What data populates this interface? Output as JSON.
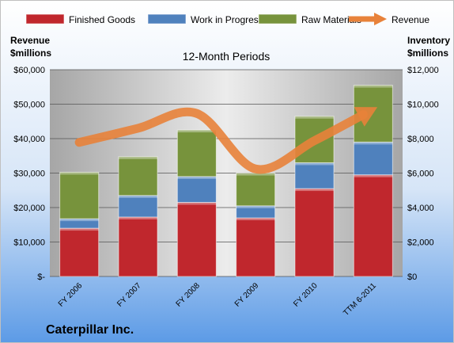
{
  "chart_data": {
    "type": "bar",
    "subtype": "stacked-bar-with-line",
    "title": "12-Month Periods",
    "company": "Caterpillar Inc.",
    "left_axis_label": [
      "Revenue",
      "$millions"
    ],
    "right_axis_label": [
      "Inventory",
      "$millions"
    ],
    "categories": [
      "FY 2006",
      "FY 2007",
      "FY 2008",
      "FY 2009",
      "FY 2010",
      "TTM 6-2011"
    ],
    "left_axis": {
      "min": 0,
      "max": 60000,
      "ticks": [
        "$-",
        "$10,000",
        "$20,000",
        "$30,000",
        "$40,000",
        "$50,000",
        "$60,000"
      ]
    },
    "right_axis": {
      "min": 0,
      "max": 12000,
      "ticks": [
        "$0",
        "$2,000",
        "$4,000",
        "$6,000",
        "$8,000",
        "$10,000",
        "$12,000"
      ]
    },
    "series": [
      {
        "name": "Finished Goods",
        "kind": "bar",
        "axis": "right",
        "color": "#c0272d",
        "values": [
          2800,
          3450,
          4300,
          3400,
          5100,
          5900
        ]
      },
      {
        "name": "Work in Progress",
        "kind": "bar",
        "axis": "right",
        "color": "#4f81bd",
        "values": [
          550,
          1250,
          1500,
          700,
          1500,
          1900
        ]
      },
      {
        "name": "Raw Materials",
        "kind": "bar",
        "axis": "right",
        "color": "#77933c",
        "values": [
          2700,
          2250,
          2700,
          1900,
          2700,
          3300
        ]
      },
      {
        "name": "Revenue",
        "kind": "line",
        "axis": "left",
        "color": "#e8823a",
        "values": [
          38900,
          43000,
          47300,
          31200,
          39400,
          48500
        ]
      }
    ],
    "grid": true,
    "legend": "top"
  }
}
